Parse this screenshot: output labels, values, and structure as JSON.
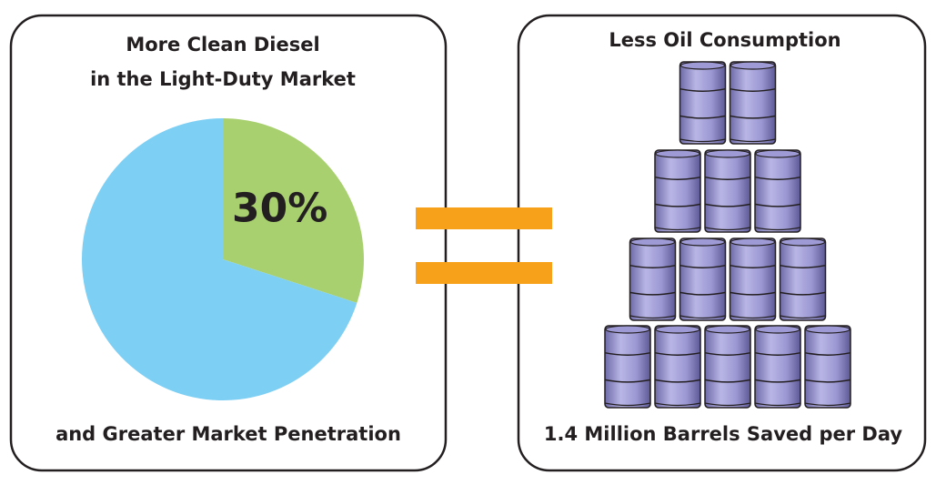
{
  "chart_data": {
    "type": "pie",
    "values": [
      30,
      70
    ],
    "value_labels": [
      "30%",
      null
    ],
    "colors": [
      "#a8d06f",
      "#7ecff4"
    ]
  },
  "left_panel": {
    "title_lines": [
      "More Clean Diesel",
      "in the Light-Duty Market"
    ],
    "caption": "and Greater Market Penetration"
  },
  "right_panel": {
    "title": "Less Oil Consumption",
    "caption": "1.4 Million Barrels Saved per Day"
  }
}
